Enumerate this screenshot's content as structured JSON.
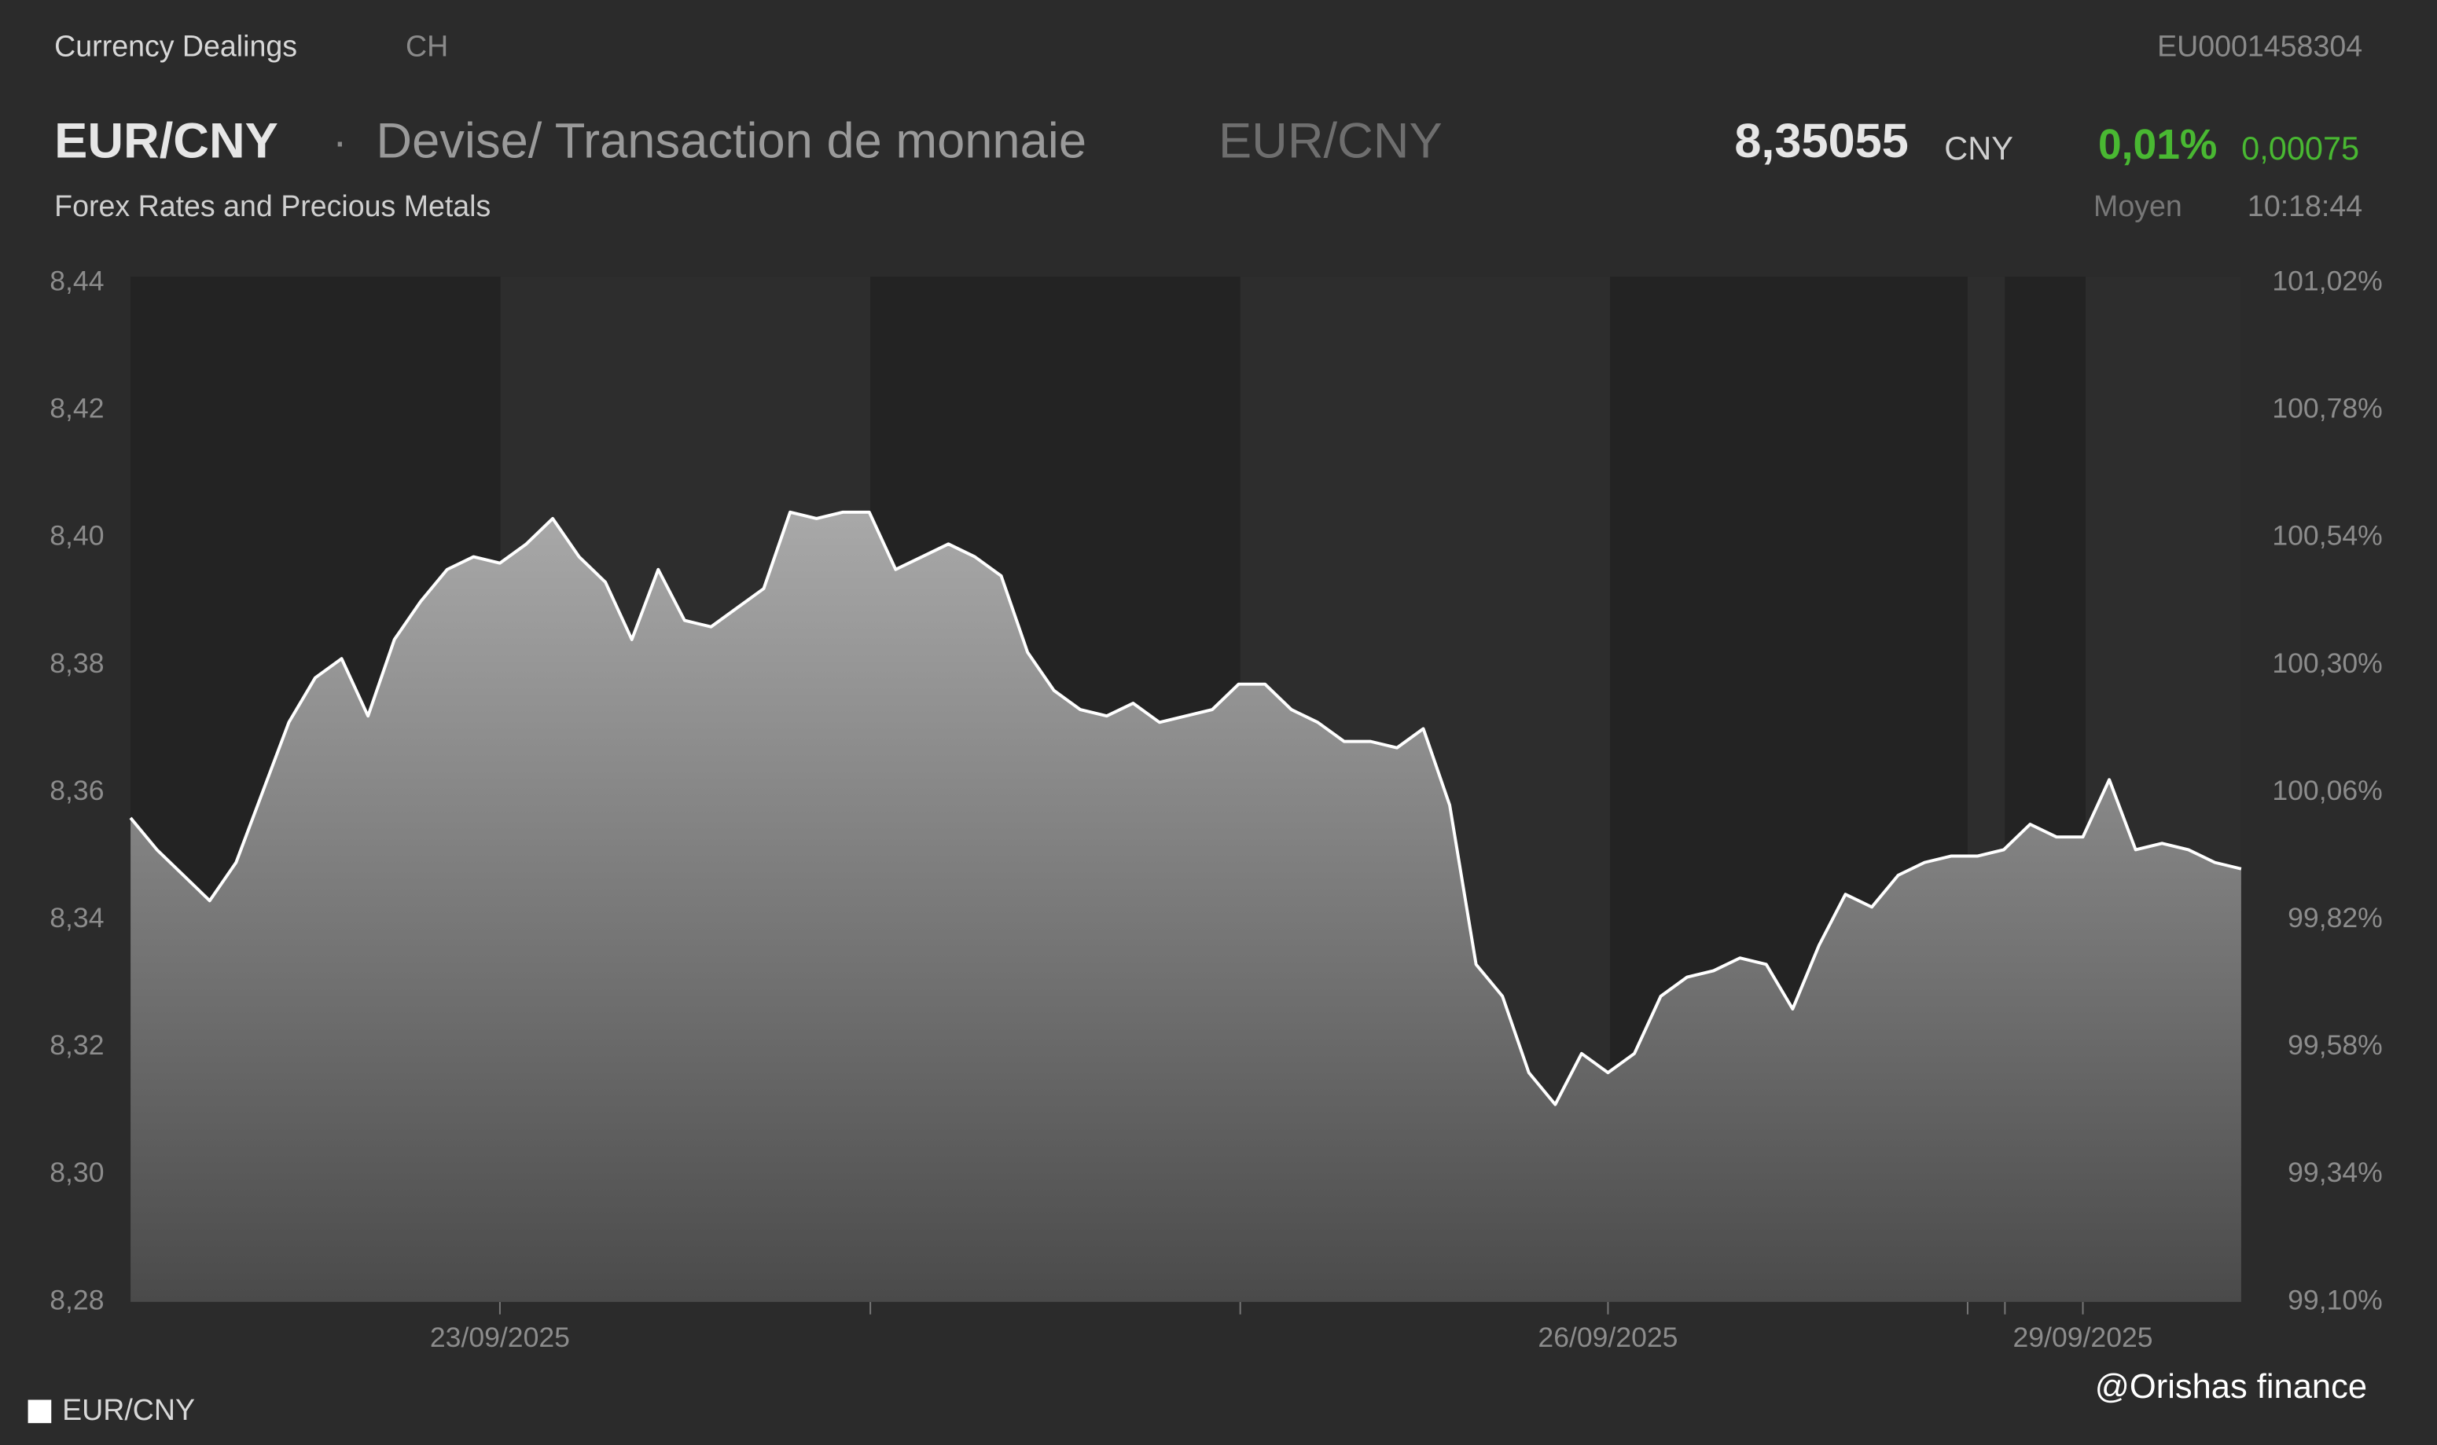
{
  "header": {
    "source": "Currency Dealings",
    "country": "CH",
    "isin": "EU0001458304",
    "symbol": "EUR/CNY",
    "separator": "·",
    "instrument": "Devise/ Transaction de monnaie",
    "symbol_alt": "EUR/CNY",
    "price": "8,35055",
    "currency": "CNY",
    "change_pct": "0,01%",
    "change_abs": "0,00075",
    "subtitle": "Forex Rates and Precious Metals",
    "price_type": "Moyen",
    "time": "10:18:44"
  },
  "watermark": "@Orishas finance",
  "chart_data": {
    "type": "area",
    "categories": [
      null,
      null,
      null,
      null,
      null,
      null,
      null,
      null,
      null,
      null,
      null,
      null,
      null,
      null,
      "23/09/2025",
      null,
      null,
      null,
      null,
      null,
      null,
      null,
      null,
      null,
      null,
      null,
      null,
      null,
      null,
      null,
      null,
      null,
      null,
      null,
      null,
      null,
      null,
      null,
      null,
      null,
      null,
      null,
      null,
      null,
      null,
      null,
      null,
      null,
      null,
      null,
      null,
      null,
      null,
      null,
      null,
      null,
      "26/09/2025",
      null,
      null,
      null,
      null,
      null,
      null,
      null,
      null,
      null,
      null,
      null,
      null,
      null,
      null,
      null,
      null,
      null,
      "29/09/2025",
      null,
      null,
      null,
      null,
      null,
      null
    ],
    "series": [
      {
        "name": "EUR/CNY",
        "color": "#ffffff",
        "values": [
          8.356,
          8.351,
          8.347,
          8.343,
          8.349,
          8.36,
          8.371,
          8.378,
          8.381,
          8.372,
          8.384,
          8.39,
          8.395,
          8.397,
          8.396,
          8.399,
          8.403,
          8.397,
          8.393,
          8.384,
          8.395,
          8.387,
          8.386,
          8.389,
          8.392,
          8.404,
          8.403,
          8.404,
          8.404,
          8.395,
          8.397,
          8.399,
          8.397,
          8.394,
          8.382,
          8.376,
          8.373,
          8.372,
          8.374,
          8.371,
          8.372,
          8.373,
          8.377,
          8.377,
          8.373,
          8.371,
          8.368,
          8.368,
          8.367,
          8.37,
          8.358,
          8.333,
          8.328,
          8.316,
          8.311,
          8.319,
          8.316,
          8.319,
          8.328,
          8.331,
          8.332,
          8.334,
          8.333,
          8.326,
          8.336,
          8.344,
          8.342,
          8.347,
          8.349,
          8.35,
          8.35,
          8.351,
          8.355,
          8.353,
          8.353,
          8.362,
          8.351,
          8.352,
          8.351,
          8.349,
          8.348
        ]
      }
    ],
    "ylim": [
      8.28,
      8.44
    ],
    "yticks": [
      {
        "value": 8.28,
        "label": "8,28"
      },
      {
        "value": 8.3,
        "label": "8,30"
      },
      {
        "value": 8.32,
        "label": "8,32"
      },
      {
        "value": 8.34,
        "label": "8,34"
      },
      {
        "value": 8.36,
        "label": "8,36"
      },
      {
        "value": 8.38,
        "label": "8,38"
      },
      {
        "value": 8.4,
        "label": "8,40"
      },
      {
        "value": 8.42,
        "label": "8,42"
      },
      {
        "value": 8.44,
        "label": "8,44"
      }
    ],
    "y2lim": [
      99.1,
      101.02
    ],
    "y2ticks": [
      {
        "value": 99.1,
        "label": "99,10%"
      },
      {
        "value": 99.34,
        "label": "99,34%"
      },
      {
        "value": 99.58,
        "label": "99,58%"
      },
      {
        "value": 99.82,
        "label": "99,82%"
      },
      {
        "value": 100.06,
        "label": "100,06%"
      },
      {
        "value": 100.3,
        "label": "100,30%"
      },
      {
        "value": 100.54,
        "label": "100,54%"
      },
      {
        "value": 100.78,
        "label": "100,78%"
      },
      {
        "value": 101.02,
        "label": "101,02%"
      }
    ]
  }
}
